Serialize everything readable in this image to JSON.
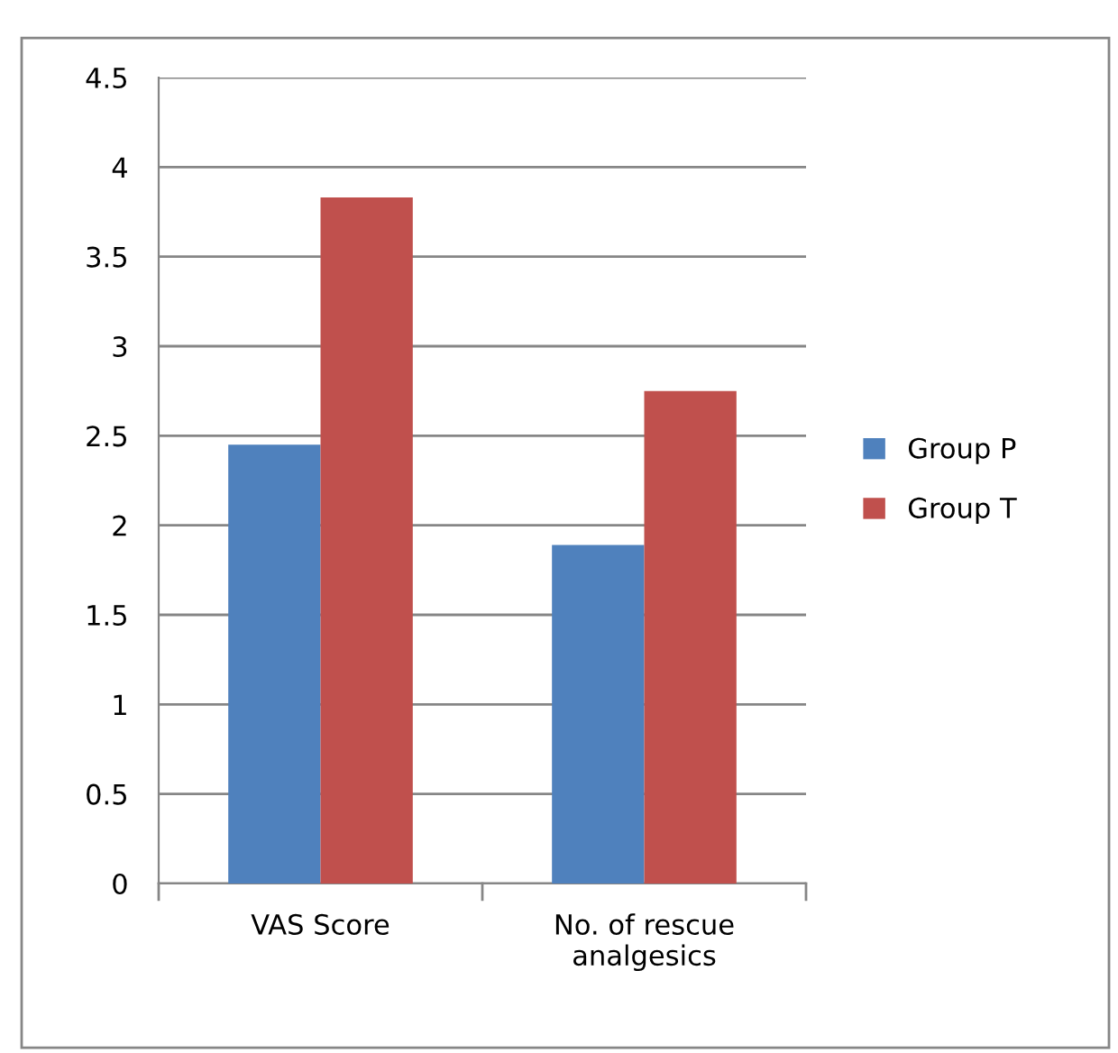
{
  "chart_data": {
    "type": "bar",
    "categories": [
      "VAS Score",
      "No. of rescue\nanalgesics"
    ],
    "series": [
      {
        "name": "Group P",
        "color": "#4f81bd",
        "values": [
          2.45,
          1.89
        ]
      },
      {
        "name": "Group T",
        "color": "#c0504d",
        "values": [
          3.83,
          2.75
        ]
      }
    ],
    "ylim": [
      0,
      4.5
    ],
    "yticks": [
      0,
      0.5,
      1,
      1.5,
      2,
      2.5,
      3,
      3.5,
      4,
      4.5
    ],
    "grid": "y",
    "legend": "right"
  }
}
